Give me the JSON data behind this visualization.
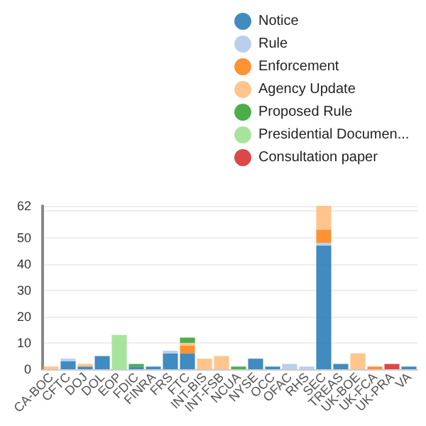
{
  "chart_data": {
    "type": "bar",
    "stacked": true,
    "legend": "top right",
    "grid": "y",
    "categories": [
      "CA-BOC",
      "CFTC",
      "DOJ",
      "DOL",
      "EOP",
      "FDIC",
      "FINRA",
      "FRS",
      "FTC",
      "INT-BIS",
      "INT-FSB",
      "NCUA",
      "NYSE",
      "OCC",
      "OFAC",
      "RHS",
      "SEC",
      "TREAS",
      "UK-BOE",
      "UK-FCA",
      "UK-PRA",
      "VA"
    ],
    "ylim": [
      0,
      62
    ],
    "yticks": [
      0,
      10,
      20,
      30,
      40,
      50,
      {
        "value": 60,
        "label": null
      },
      62
    ],
    "series": [
      {
        "name": "Notice",
        "color": "#1f77b4",
        "values": [
          0,
          3,
          1,
          5,
          0,
          1,
          1,
          6,
          6,
          0,
          0,
          0,
          4,
          1,
          0,
          0,
          47,
          2,
          0,
          0,
          0,
          1
        ]
      },
      {
        "name": "Rule",
        "color": "#aec7e8",
        "values": [
          0,
          1,
          0,
          0,
          0,
          0,
          0,
          1,
          0,
          0,
          0,
          0,
          0,
          0,
          2,
          1,
          1,
          0,
          0,
          0,
          0,
          0
        ]
      },
      {
        "name": "Enforcement",
        "color": "#ff7f0e",
        "values": [
          0,
          0,
          0,
          0,
          0,
          0,
          0,
          0,
          3,
          0,
          0,
          0,
          0,
          0,
          0,
          0,
          5,
          0,
          0,
          1,
          0,
          0
        ]
      },
      {
        "name": "Agency Update",
        "color": "#ffbb78",
        "values": [
          1,
          0,
          1,
          0,
          0,
          0,
          0,
          0,
          1,
          4,
          5,
          0,
          0,
          0,
          0,
          0,
          9,
          0,
          6,
          0,
          0,
          0
        ]
      },
      {
        "name": "Proposed Rule",
        "color": "#2ca02c",
        "values": [
          0,
          0,
          0,
          0,
          0,
          1,
          0,
          0,
          2,
          0,
          0,
          1,
          0,
          0,
          0,
          0,
          0,
          0,
          0,
          0,
          0,
          0
        ]
      },
      {
        "name": "Presidential Documen...",
        "color": "#98df8a",
        "values": [
          0,
          0,
          0,
          0,
          13,
          0,
          0,
          0,
          0,
          0,
          0,
          0,
          0,
          0,
          0,
          0,
          0,
          0,
          0,
          0,
          0,
          0
        ]
      },
      {
        "name": "Consultation paper",
        "color": "#d62728",
        "values": [
          0,
          0,
          0,
          0,
          0,
          0,
          0,
          0,
          0,
          0,
          0,
          0,
          0,
          0,
          0,
          0,
          0,
          0,
          0,
          0,
          2,
          0
        ]
      }
    ]
  }
}
